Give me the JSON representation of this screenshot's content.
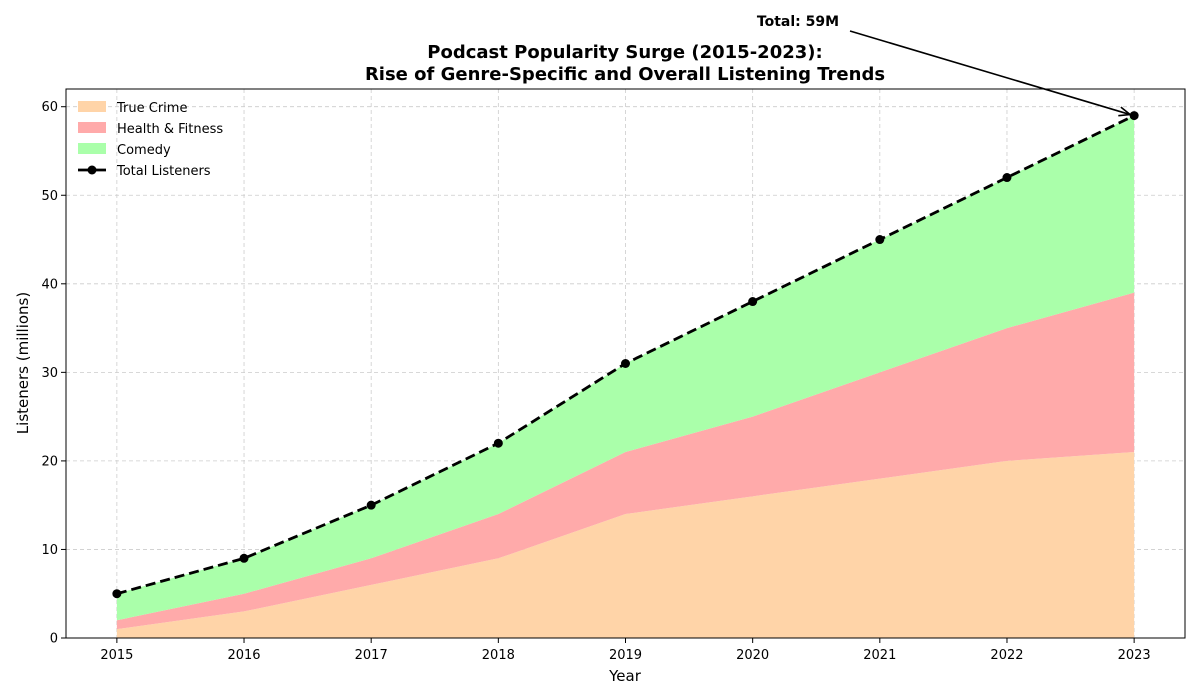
{
  "chart_data": {
    "type": "area",
    "title": "Podcast Popularity Surge (2015-2023):",
    "subtitle": "Rise of Genre-Specific and Overall Listening Trends",
    "xlabel": "Year",
    "ylabel": "Listeners (millions)",
    "x": [
      2015,
      2016,
      2017,
      2018,
      2019,
      2020,
      2021,
      2022,
      2023
    ],
    "xlim": [
      2014.6,
      2023.4
    ],
    "ylim": [
      0,
      62
    ],
    "yticks": [
      0,
      10,
      20,
      30,
      40,
      50,
      60
    ],
    "stacked": true,
    "grid": true,
    "legend_position": "top-left",
    "series": [
      {
        "name": "True Crime",
        "values": [
          1,
          3,
          6,
          9,
          14,
          16,
          18,
          20,
          21
        ],
        "color": "#ffd4a8"
      },
      {
        "name": "Health & Fitness",
        "values": [
          1,
          2,
          3,
          5,
          7,
          9,
          12,
          15,
          18
        ],
        "color": "#ffaaaa"
      },
      {
        "name": "Comedy",
        "values": [
          3,
          4,
          6,
          8,
          10,
          13,
          15,
          17,
          20
        ],
        "color": "#aaffaa"
      }
    ],
    "line_series": {
      "name": "Total Listeners",
      "values": [
        5,
        9,
        15,
        22,
        31,
        38,
        45,
        52,
        59
      ],
      "color": "#000000",
      "style": "dashed"
    },
    "annotation": {
      "text": "Total: 59M",
      "x": 2023,
      "y": 59
    }
  }
}
